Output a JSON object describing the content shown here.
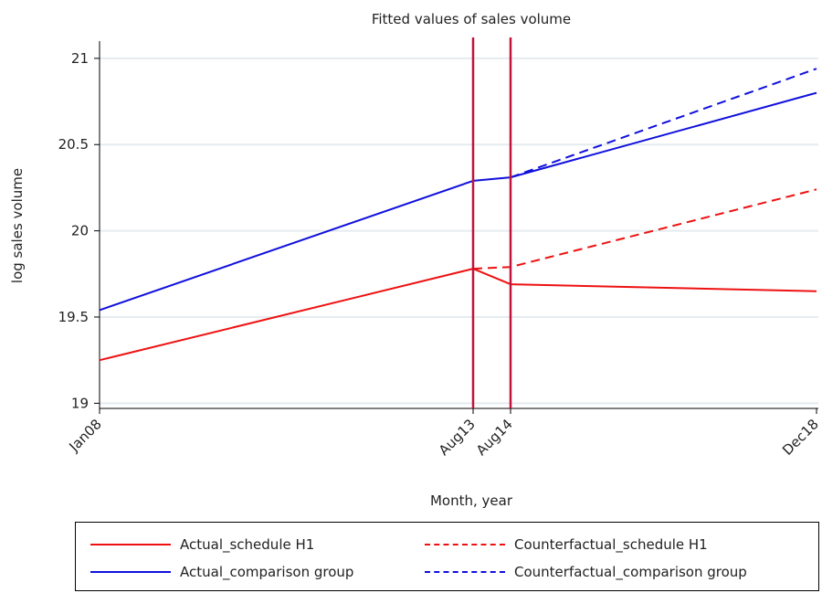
{
  "chart_data": {
    "type": "line",
    "title": "Fitted values of sales volume",
    "xlabel": "Month, year",
    "ylabel": "log sales volume",
    "x": [
      "Jan08",
      "Aug13",
      "Aug14",
      "Dec18"
    ],
    "x_ticks": [
      "Jan08",
      "Aug13",
      "Aug14",
      "Dec18"
    ],
    "y_ticks": [
      "19",
      "19.5",
      "20",
      "20.5",
      "21"
    ],
    "ylim": [
      18.97,
      21.1
    ],
    "grid": true,
    "vertical_lines": [
      "Aug13",
      "Aug14"
    ],
    "legend_position": "bottom",
    "series": [
      {
        "name": "Actual_schedule H1",
        "color": "#ee1111",
        "style": "solid",
        "points": [
          [
            "Jan08",
            19.25
          ],
          [
            "Aug13",
            19.78
          ],
          [
            "Aug14",
            19.69
          ],
          [
            "Dec18",
            19.65
          ]
        ]
      },
      {
        "name": "Counterfactual_schedule H1",
        "color": "#ee1111",
        "style": "dashed",
        "points": [
          [
            "Aug13",
            19.78
          ],
          [
            "Aug14",
            19.79
          ],
          [
            "Dec18",
            20.24
          ]
        ]
      },
      {
        "name": "Actual_comparison group",
        "color": "#1010dd",
        "style": "solid",
        "points": [
          [
            "Jan08",
            19.54
          ],
          [
            "Aug13",
            20.29
          ],
          [
            "Aug14",
            20.31
          ],
          [
            "Dec18",
            20.8
          ]
        ]
      },
      {
        "name": "Counterfactual_comparison group",
        "color": "#1010dd",
        "style": "dashed",
        "points": [
          [
            "Aug14",
            20.31
          ],
          [
            "Dec18",
            20.94
          ]
        ]
      }
    ],
    "vline_color": "#c0143c"
  }
}
